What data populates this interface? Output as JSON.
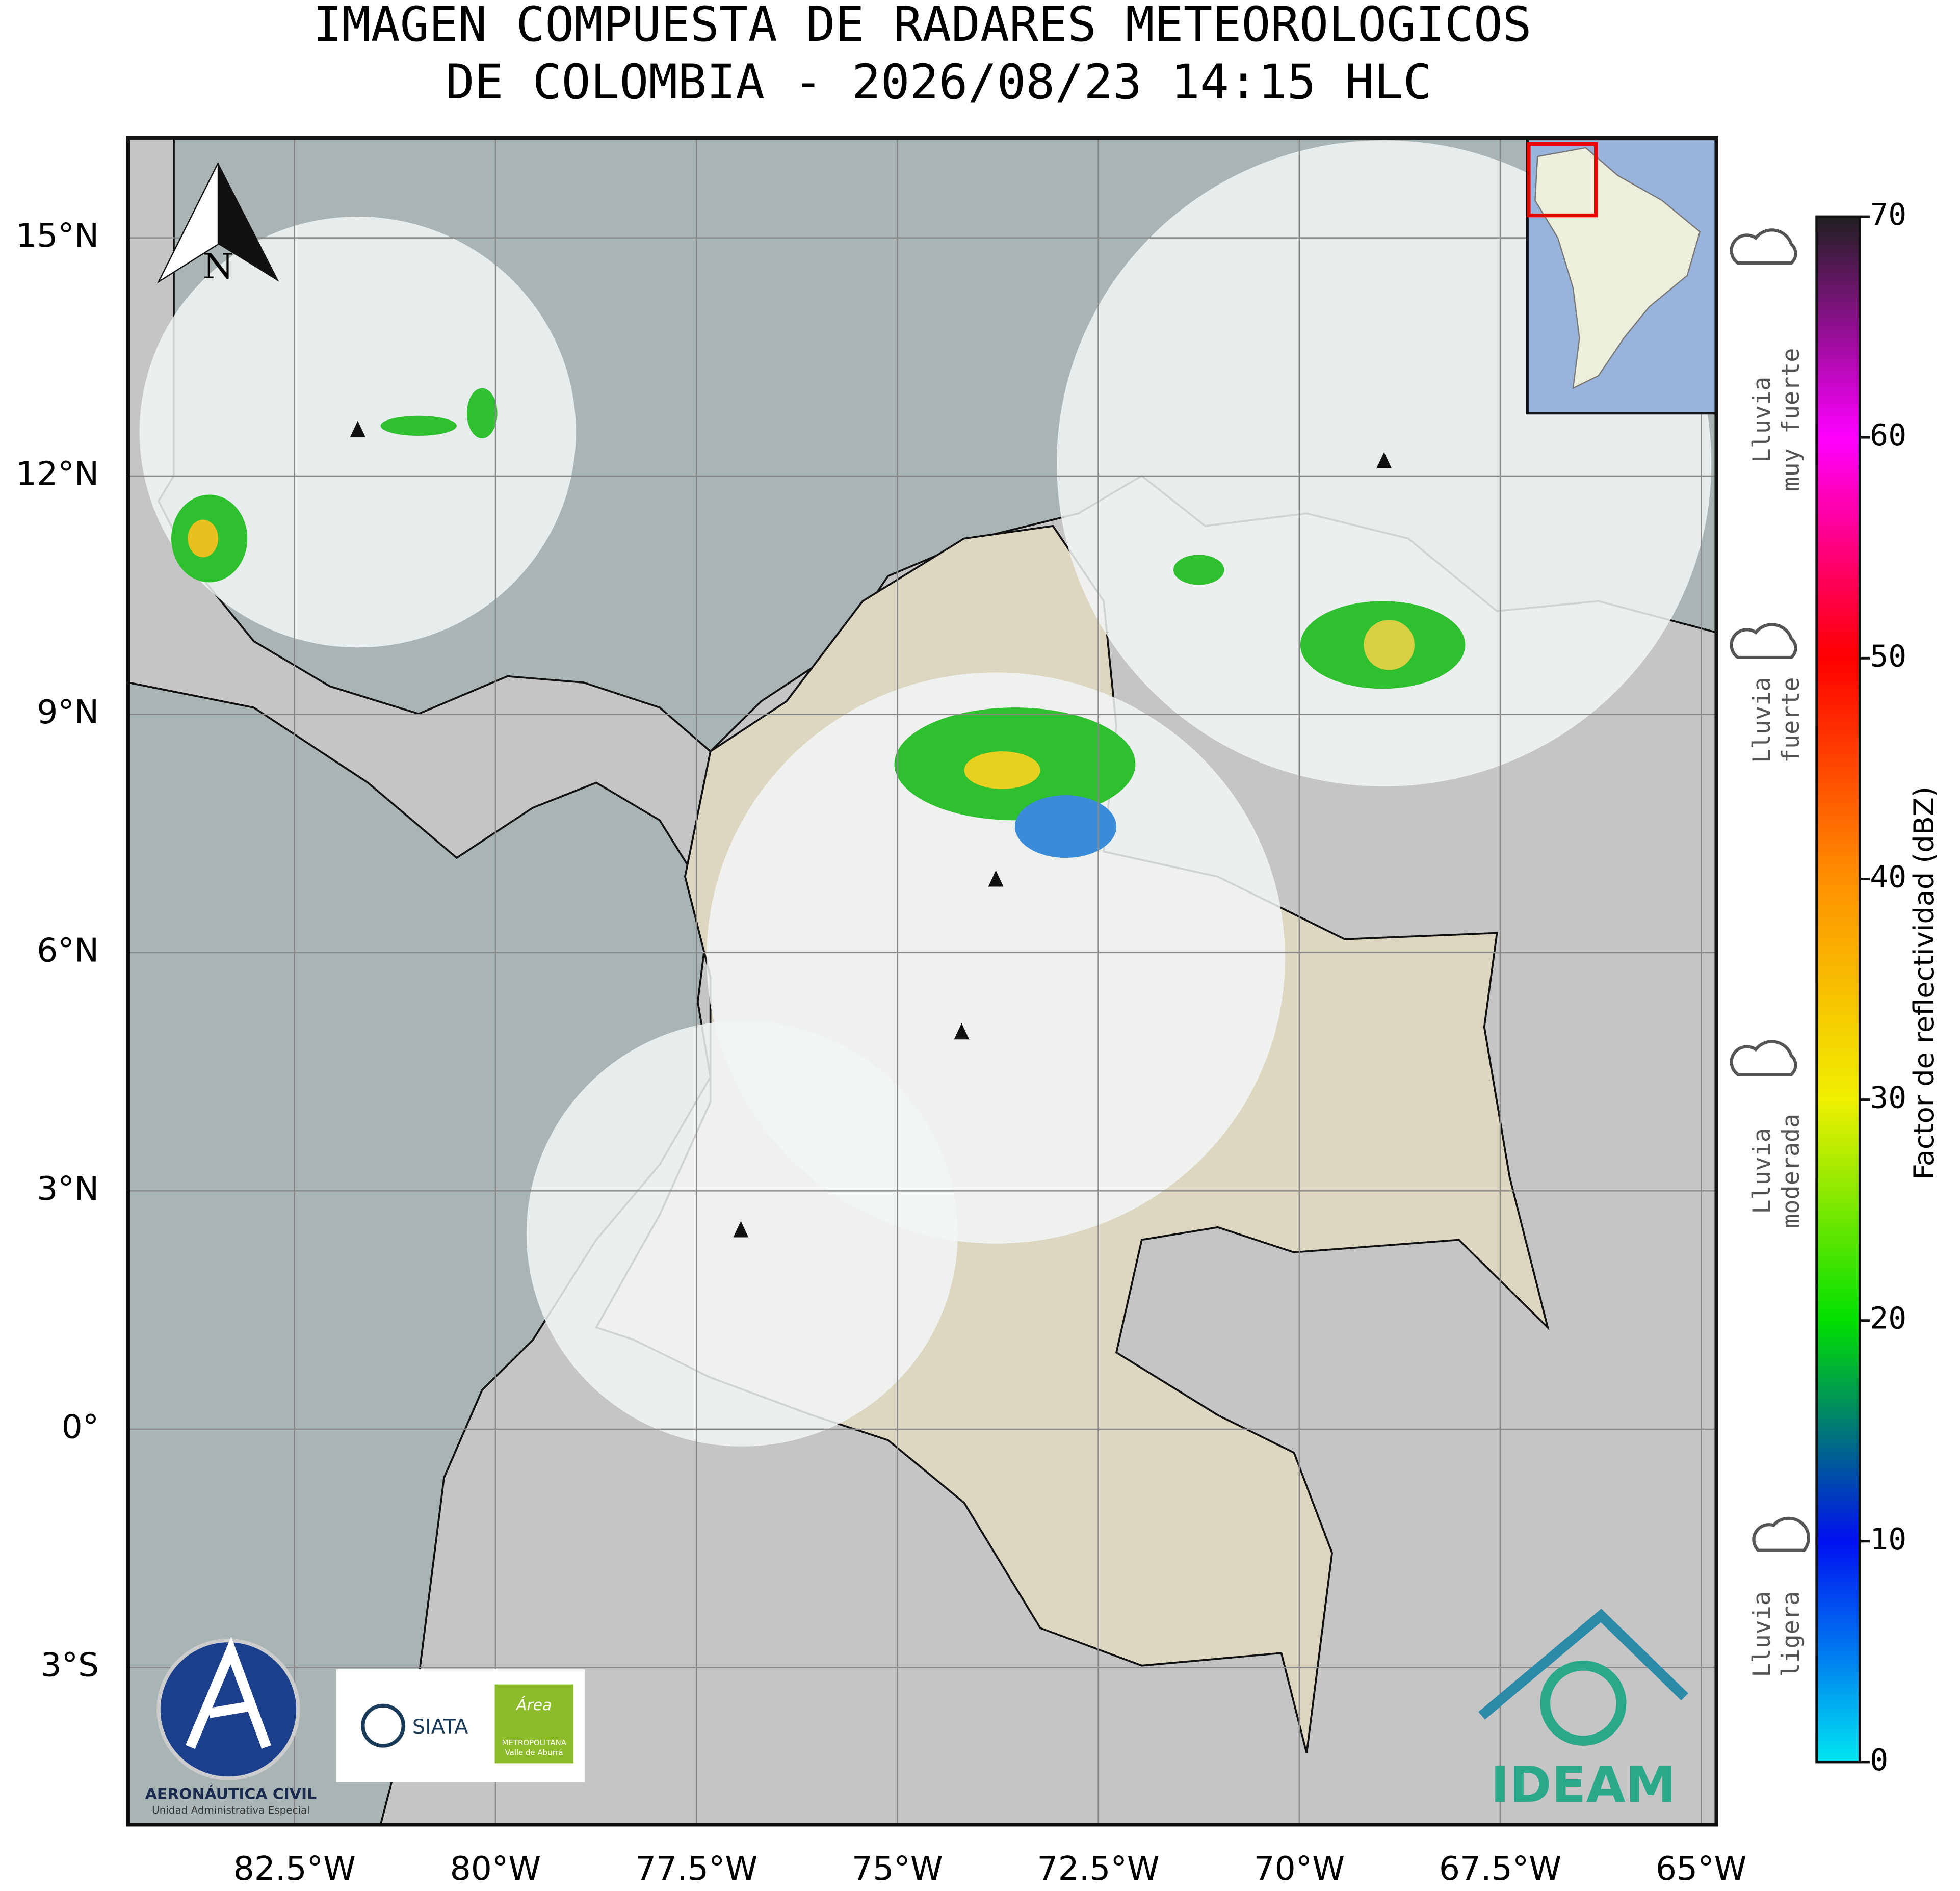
{
  "title": {
    "lines": [
      "IMAGEN COMPUESTA DE RADARES METEOROLOGICOS",
      "DE COLOMBIA - 2026/08/23 14:15 HLC"
    ]
  },
  "map": {
    "lon_lim": [
      -84.57,
      -64.81
    ],
    "lat_lim": [
      -4.98,
      16.26
    ],
    "lon_ticks": [
      {
        "value": -82.5,
        "label": "82.5°W"
      },
      {
        "value": -80,
        "label": "80°W"
      },
      {
        "value": -77.5,
        "label": "77.5°W"
      },
      {
        "value": -75,
        "label": "75°W"
      },
      {
        "value": -72.5,
        "label": "72.5°W"
      },
      {
        "value": -70,
        "label": "70°W"
      },
      {
        "value": -67.5,
        "label": "67.5°W"
      },
      {
        "value": -65,
        "label": "65°W"
      }
    ],
    "lat_ticks": [
      {
        "value": 15,
        "label": "15°N"
      },
      {
        "value": 12,
        "label": "12°N"
      },
      {
        "value": 9,
        "label": "9°N"
      },
      {
        "value": 6,
        "label": "6°N"
      },
      {
        "value": 3,
        "label": "3°N"
      },
      {
        "value": 0,
        "label": "0°"
      },
      {
        "value": -3,
        "label": "3°S"
      }
    ],
    "grid": true,
    "north_label": "N"
  },
  "colorbar": {
    "label": "Factor de reflectividad (dBZ)",
    "lim": [
      0,
      70
    ],
    "ticks": [
      0,
      10,
      20,
      30,
      40,
      50,
      60,
      70
    ],
    "colors": [
      "#00e5f0",
      "#0010f0",
      "#00e000",
      "#f0f000",
      "#ff9000",
      "#ff0000",
      "#ff00ff",
      "#202020"
    ]
  },
  "legend": [
    {
      "lines": [
        "Lluvia",
        "muy fuerte"
      ]
    },
    {
      "lines": [
        "Lluvia",
        "fuerte"
      ]
    },
    {
      "lines": [
        "Lluvia",
        "moderada"
      ]
    },
    {
      "lines": [
        "Lluvia",
        "ligera"
      ]
    }
  ],
  "logos": {
    "aero": [
      "AERONÁUTICA CIVIL",
      "Unidad Administrativa Especial"
    ],
    "siata": "SIATA",
    "area": [
      "Área",
      "METROPOLITANA",
      "Valle de Aburrá"
    ],
    "ideam": "IDEAM"
  }
}
